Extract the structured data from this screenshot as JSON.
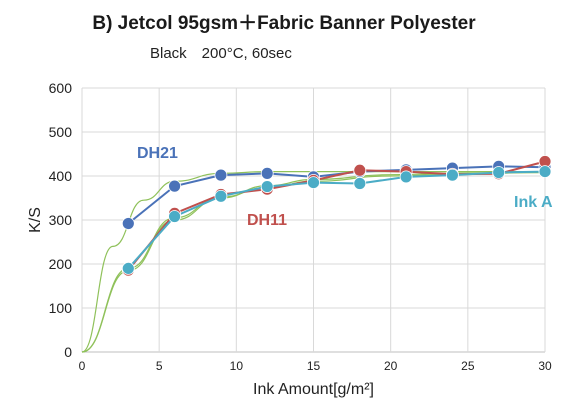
{
  "chart_data": {
    "type": "line",
    "title": "B) Jetcol 95gsm＋Fabric Banner Polyester",
    "subtitle": "Black　200°C, 60sec",
    "xlabel": "Ink Amount[g/m²]",
    "ylabel": "K/S",
    "xlim": [
      0,
      30
    ],
    "ylim": [
      0,
      600
    ],
    "xticks": [
      "0",
      "5",
      "10",
      "15",
      "20",
      "25",
      "30"
    ],
    "yticks": [
      "0",
      "100",
      "200",
      "300",
      "400",
      "500",
      "600"
    ],
    "grid": true,
    "series": [
      {
        "name": "DH21",
        "color": "#4a72b8",
        "x": [
          3,
          6,
          9,
          12,
          15,
          18,
          21,
          24,
          27,
          30
        ],
        "y": [
          292,
          377,
          402,
          406,
          398,
          410,
          414,
          418,
          422,
          420
        ],
        "fit": [
          [
            0,
            0
          ],
          [
            2,
            240
          ],
          [
            4,
            345
          ],
          [
            6,
            388
          ],
          [
            9,
            406
          ],
          [
            12,
            410
          ],
          [
            18,
            410
          ],
          [
            24,
            410
          ],
          [
            30,
            410
          ]
        ]
      },
      {
        "name": "DH11",
        "color": "#c0504d",
        "x": [
          3,
          6,
          9,
          12,
          15,
          18,
          21,
          24,
          27,
          30
        ],
        "y": [
          186,
          315,
          358,
          370,
          390,
          413,
          410,
          404,
          405,
          433
        ],
        "fit": [
          [
            0,
            0
          ],
          [
            3,
            185
          ],
          [
            6,
            300
          ],
          [
            9,
            350
          ],
          [
            12,
            378
          ],
          [
            15,
            392
          ],
          [
            20,
            403
          ],
          [
            25,
            407
          ],
          [
            30,
            408
          ]
        ]
      },
      {
        "name": "Ink A",
        "color": "#4bacc6",
        "x": [
          3,
          6,
          9,
          12,
          15,
          18,
          21,
          24,
          27,
          30
        ],
        "y": [
          190,
          308,
          354,
          376,
          385,
          383,
          398,
          402,
          408,
          410
        ],
        "fit": [
          [
            0,
            0
          ],
          [
            3,
            190
          ],
          [
            6,
            305
          ],
          [
            9,
            352
          ],
          [
            12,
            374
          ],
          [
            15,
            388
          ],
          [
            20,
            400
          ],
          [
            25,
            405
          ],
          [
            30,
            408
          ]
        ]
      }
    ],
    "annotations": [
      {
        "text": "DH21",
        "color": "#4a72b8"
      },
      {
        "text": "DH11",
        "color": "#c0504d"
      },
      {
        "text": "Ink A",
        "color": "#4bacc6"
      }
    ]
  }
}
